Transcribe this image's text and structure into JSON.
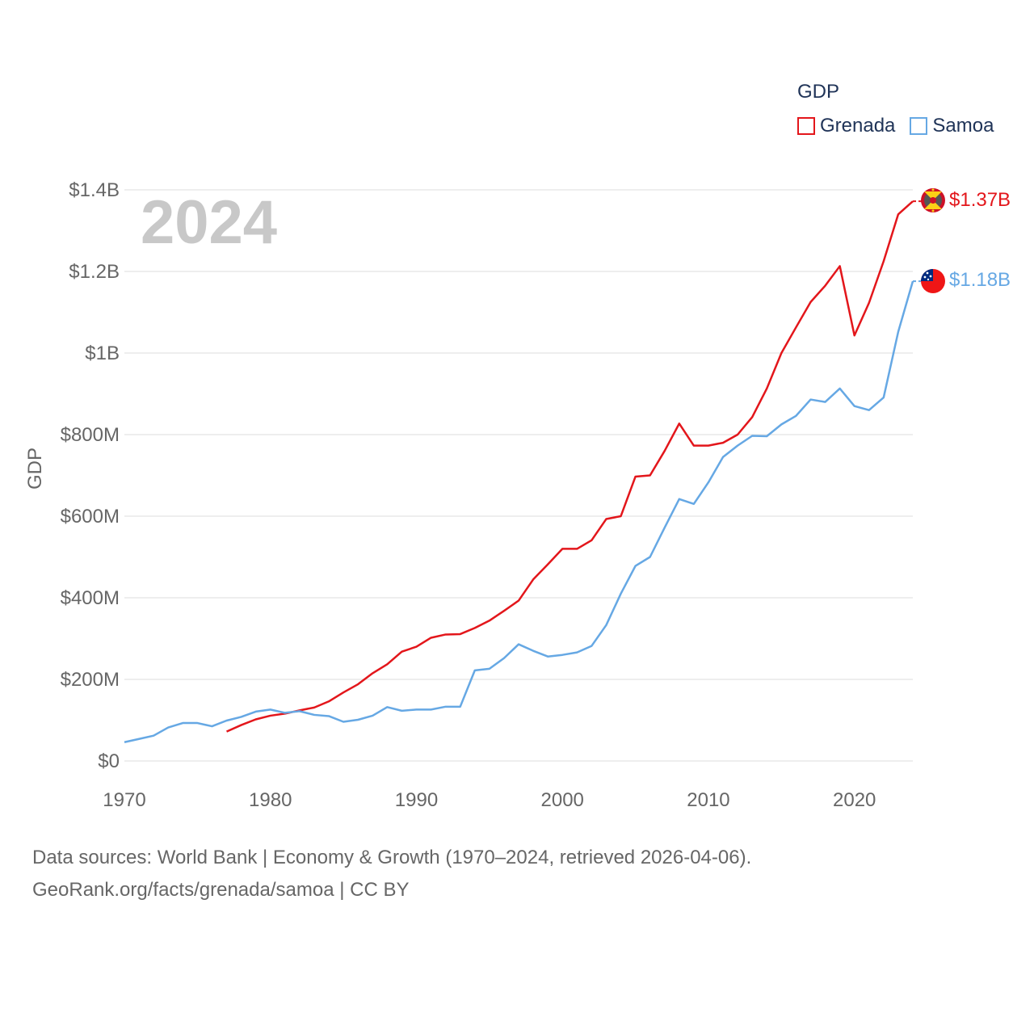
{
  "colors": {
    "grenada": "#e3161b",
    "samoa": "#66a8e4",
    "grid": "#e8e8e8",
    "axis_text": "#666666",
    "legend_text": "#1f3357",
    "year_text": "#c8c8c8"
  },
  "legend": {
    "title": "GDP",
    "items": [
      {
        "name": "Grenada"
      },
      {
        "name": "Samoa"
      }
    ]
  },
  "footer": {
    "line1": "Data sources: World Bank | Economy & Growth (1970–2024, retrieved 2026-04-06).",
    "line2": "GeoRank.org/facts/grenada/samoa | CC BY"
  },
  "chart_data": {
    "type": "line",
    "title": "GDP",
    "year_label": "2024",
    "xlabel": "",
    "ylabel": "GDP",
    "xlim": [
      1970,
      2024
    ],
    "ylim": [
      0,
      1400000000
    ],
    "x_ticks": [
      {
        "value": 1970,
        "label": "1970"
      },
      {
        "value": 1980,
        "label": "1980"
      },
      {
        "value": 1990,
        "label": "1990"
      },
      {
        "value": 2000,
        "label": "2000"
      },
      {
        "value": 2010,
        "label": "2010"
      },
      {
        "value": 2020,
        "label": "2020"
      }
    ],
    "y_ticks": [
      {
        "value": 0,
        "label": "$0"
      },
      {
        "value": 200000000,
        "label": "$200M"
      },
      {
        "value": 400000000,
        "label": "$400M"
      },
      {
        "value": 600000000,
        "label": "$600M"
      },
      {
        "value": 800000000,
        "label": "$800M"
      },
      {
        "value": 1000000000,
        "label": "$1B"
      },
      {
        "value": 1200000000,
        "label": "$1.2B"
      },
      {
        "value": 1400000000,
        "label": "$1.4B"
      }
    ],
    "grid": true,
    "legend_position": "top-right",
    "series": [
      {
        "name": "Grenada",
        "color": "#e3161b",
        "end_label": "$1.37B",
        "flag_icon": "grenada-flag-icon",
        "start_year": 1977,
        "values": [
          72,
          88,
          102,
          111,
          116,
          124,
          131,
          146,
          168,
          188,
          215,
          237,
          268,
          280,
          302,
          310,
          311,
          326,
          344,
          368,
          393,
          445,
          482,
          520,
          520,
          541,
          593,
          600,
          697,
          700,
          760,
          827,
          773,
          773,
          780,
          800,
          843,
          913,
          1000,
          1063,
          1125,
          1165,
          1213,
          1043,
          1123,
          1225,
          1340,
          1372
        ]
      },
      {
        "name": "Samoa",
        "color": "#66a8e4",
        "end_label": "$1.18B",
        "flag_icon": "samoa-flag-icon",
        "start_year": 1970,
        "values": [
          46,
          54,
          62,
          82,
          93,
          93,
          85,
          99,
          108,
          121,
          126,
          118,
          122,
          113,
          110,
          96,
          101,
          111,
          132,
          123,
          126,
          126,
          133,
          133,
          222,
          226,
          252,
          286,
          270,
          256,
          260,
          266,
          282,
          333,
          410,
          478,
          500,
          572,
          642,
          630,
          683,
          745,
          773,
          797,
          796,
          825,
          846,
          886,
          880,
          913,
          870,
          860,
          891,
          1052,
          1176
        ]
      }
    ]
  }
}
